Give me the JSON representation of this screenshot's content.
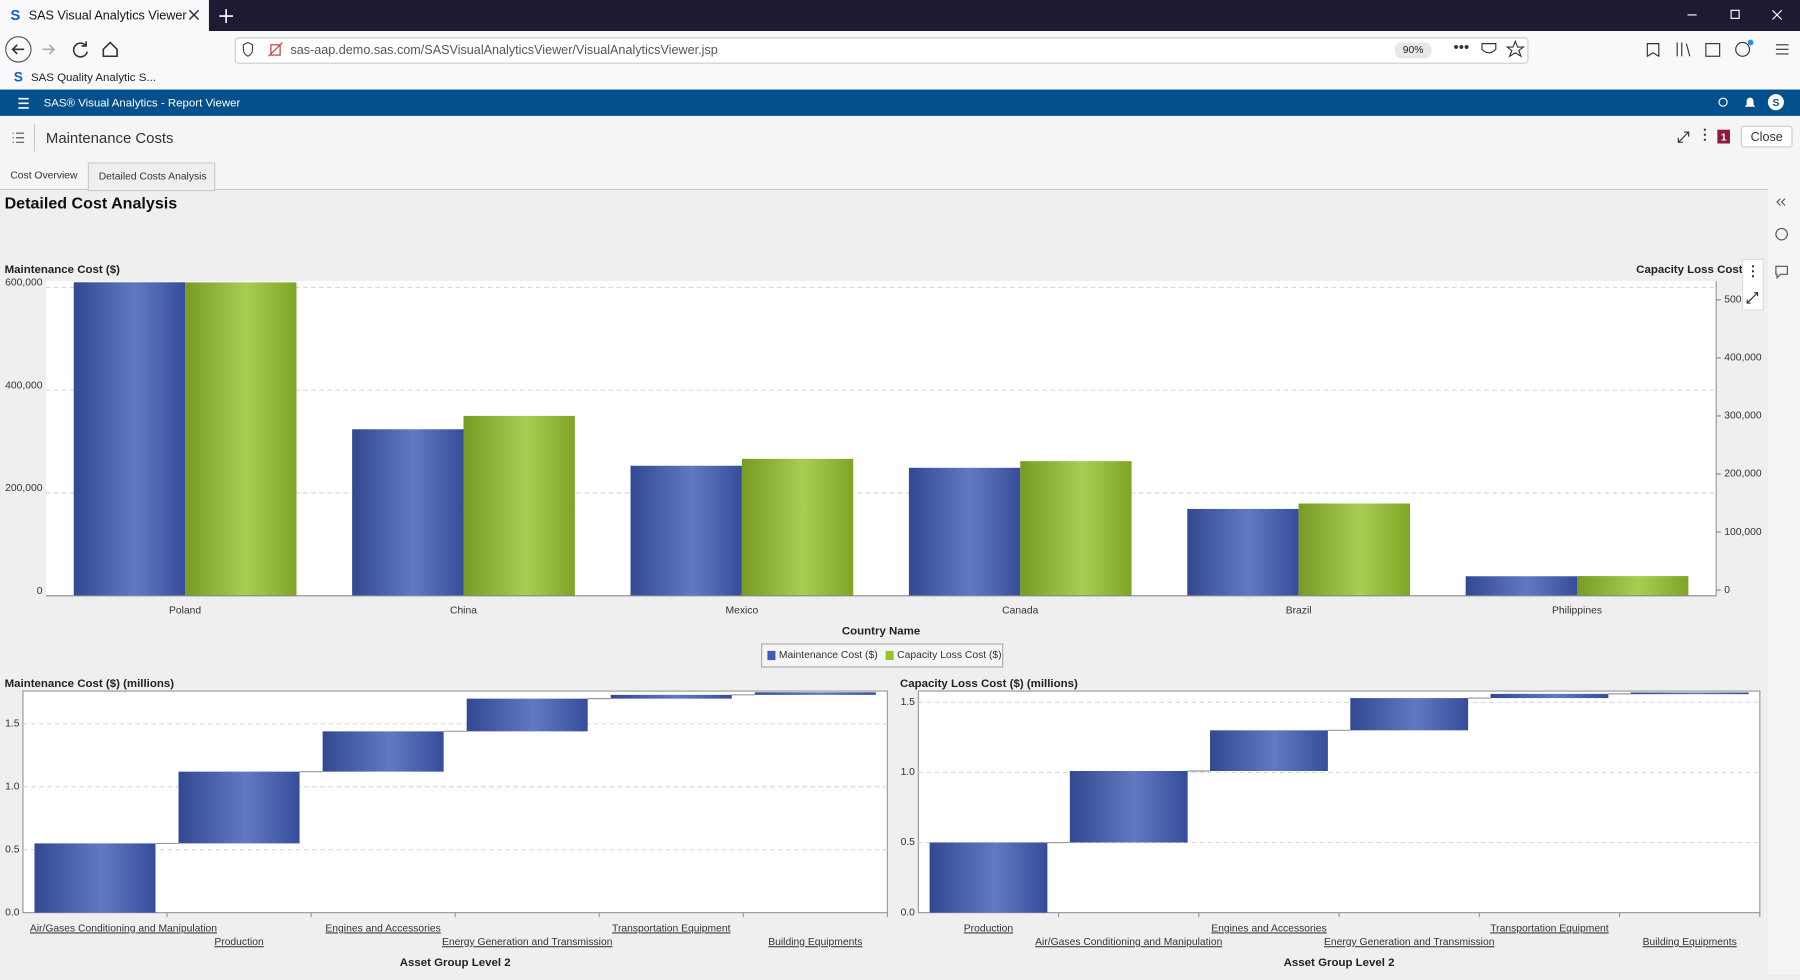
{
  "browser": {
    "tab_title": "SAS Visual Analytics Viewer",
    "url": "sas-aap.demo.sas.com/SASVisualAnalyticsViewer/VisualAnalyticsViewer.jsp",
    "zoom": "90%",
    "bookmark": "SAS Quality Analytic S..."
  },
  "app": {
    "title": "SAS® Visual Analytics - Report Viewer",
    "user": "S",
    "report_title": "Maintenance Costs",
    "badge": "1",
    "close": "Close"
  },
  "tabs": [
    "Cost Overview",
    "Detailed Costs Analysis"
  ],
  "page_title": "Detailed Cost Analysis",
  "chart_data": [
    {
      "type": "bar",
      "y_label": "Maintenance Cost ($)",
      "y2_label": "Capacity Loss Cost",
      "x_label": "Country Name",
      "categories": [
        "Poland",
        "China",
        "Mexico",
        "Canada",
        "Brazil",
        "Philippines"
      ],
      "series": [
        {
          "name": "Maintenance Cost ($)",
          "color": "#3f5bb5",
          "values": [
            610000,
            324000,
            253000,
            249000,
            169000,
            38000
          ]
        },
        {
          "name": "Capacity Loss Cost ($)",
          "color": "#96c22c",
          "axis": "y2",
          "values": [
            540000,
            310000,
            236000,
            232000,
            159000,
            34000
          ]
        }
      ],
      "ylim": [
        0,
        612000
      ],
      "yticks": [
        0,
        {
          "value": 200000,
          "label": "200,000"
        },
        {
          "value": 400000,
          "label": "400,000"
        },
        {
          "value": 600000,
          "label": "600,000"
        }
      ],
      "y2lim": [
        0,
        542000
      ],
      "y2ticks": [
        0,
        {
          "value": 100000,
          "label": "100,000"
        },
        {
          "value": 200000,
          "label": "200,000"
        },
        {
          "value": 300000,
          "label": "300,000"
        },
        {
          "value": 400000,
          "label": "400,000"
        },
        {
          "value": 500000,
          "label": "500,000"
        }
      ],
      "grid": true,
      "legend": "bottom"
    },
    {
      "type": "waterfall",
      "y_label": "Maintenance Cost ($) (millions)",
      "x_label": "Asset Group Level 2",
      "categories": [
        "Air/Gases Conditioning and Manipulation",
        "Production",
        "Engines and Accessories",
        "Energy Generation and Transmission",
        "Transportation Equipment",
        "Building Equipments"
      ],
      "values": [
        0.55,
        0.57,
        0.32,
        0.26,
        0.03,
        0.02
      ],
      "color": "#3f5bb5",
      "ylim": [
        0,
        1.76
      ],
      "yticks": [
        {
          "value": 0,
          "label": "0.0"
        },
        0.5,
        {
          "value": 1,
          "label": "1.0"
        },
        1.5
      ],
      "grid": true
    },
    {
      "type": "waterfall",
      "y_label": "Capacity Loss Cost ($) (millions)",
      "x_label": "Asset Group Level 2",
      "categories": [
        "Production",
        "Air/Gases Conditioning and Manipulation",
        "Engines and Accessories",
        "Energy Generation and Transmission",
        "Transportation Equipment",
        "Building Equipments"
      ],
      "values": [
        0.5,
        0.51,
        0.29,
        0.23,
        0.03,
        0.01
      ],
      "color": "#3f5bb5",
      "ylim": [
        0,
        1.58
      ],
      "yticks": [
        {
          "value": 0,
          "label": "0.0"
        },
        0.5,
        {
          "value": 1,
          "label": "1.0"
        },
        1.5
      ],
      "grid": true
    }
  ]
}
